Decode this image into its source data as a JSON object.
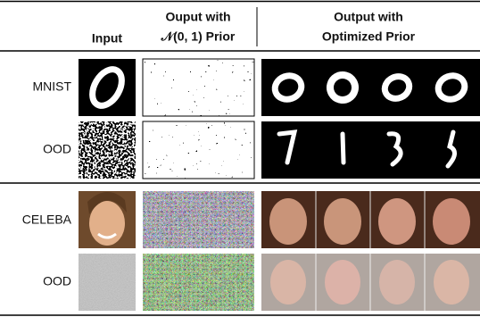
{
  "header": {
    "input": "Input",
    "prior_line1": "Ouput with",
    "prior_line2": "𝒩(0, 1) Prior",
    "optimized_line1": "Output with",
    "optimized_line2": "Optimized Prior"
  },
  "rows": [
    {
      "label": "MNIST"
    },
    {
      "label": "OOD"
    },
    {
      "label": "CELEBA"
    },
    {
      "label": "OOD"
    }
  ]
}
